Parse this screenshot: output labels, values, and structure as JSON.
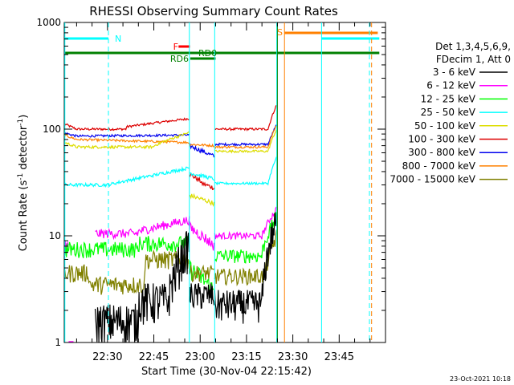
{
  "chart_data": {
    "type": "line",
    "title": "RHESSI Observing Summary Count Rates",
    "xlabel": "Start Time (30-Nov-04 22:15:42)",
    "ylabel_main": "Count Rate (s",
    "ylabel_sup1": "-1",
    "ylabel_mid": " detector",
    "ylabel_sup2": "-1",
    "ylabel_end": ")",
    "yscale": "log",
    "ylim": [
      1,
      1000
    ],
    "xlim_min": [
      16,
      120
    ],
    "x_ticks": [
      {
        "label": "22:30",
        "min": 30
      },
      {
        "label": "22:45",
        "min": 45
      },
      {
        "label": "23:00",
        "min": 60
      },
      {
        "label": "23:15",
        "min": 75
      },
      {
        "label": "23:30",
        "min": 90
      },
      {
        "label": "23:45",
        "min": 105
      }
    ],
    "y_ticks": [
      {
        "label": "1",
        "value": 1
      },
      {
        "label": "10",
        "value": 10
      },
      {
        "label": "100",
        "value": 100
      },
      {
        "label": "1000",
        "value": 1000
      }
    ],
    "legend_header": [
      "Det 1,3,4,5,6,9,",
      "FDecim 1, Att 0"
    ],
    "series": [
      {
        "name": "3 - 6 keV",
        "color": "#000000"
      },
      {
        "name": "6 - 12 keV",
        "color": "#ff00ff"
      },
      {
        "name": "12 - 25 keV",
        "color": "#00ff00"
      },
      {
        "name": "25 - 50 keV",
        "color": "#00ffff"
      },
      {
        "name": "50 - 100 keV",
        "color": "#dddd00"
      },
      {
        "name": "100 - 300 keV",
        "color": "#dd0000"
      },
      {
        "name": "300 - 800 keV",
        "color": "#0000ee"
      },
      {
        "name": "800 - 7000 keV",
        "color": "#ff8000"
      },
      {
        "name": "7000 - 15000 keV",
        "color": "#808000"
      }
    ],
    "annotations": [
      {
        "label": "N",
        "color": "#00ffff"
      },
      {
        "label": "S",
        "color": "#ff8000"
      },
      {
        "label": "F",
        "color": "#ff0000"
      },
      {
        "label": "RD0",
        "color": "#008000"
      },
      {
        "label": "RD6",
        "color": "#008000"
      }
    ],
    "timestamp": "23-Oct-2021 10:18"
  }
}
